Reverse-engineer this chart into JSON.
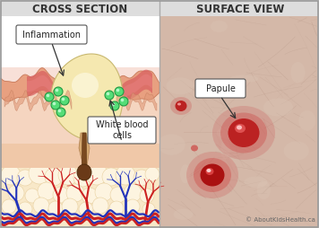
{
  "title_left": "CROSS SECTION",
  "title_right": "SURFACE VIEW",
  "title_fontsize": 8.5,
  "title_color": "#333333",
  "bg_color": "#d8d8d8",
  "border_color": "#aaaaaa",
  "label_inflammation": "Inflammation",
  "label_wbc": "White blood\ncells",
  "label_papule": "Papule",
  "label_copyright": "© AboutKidsHealth.ca",
  "wbc_color": "#55dd77",
  "wbc_outline": "#229944",
  "callout_bg": "#ffffff",
  "callout_border": "#555555"
}
